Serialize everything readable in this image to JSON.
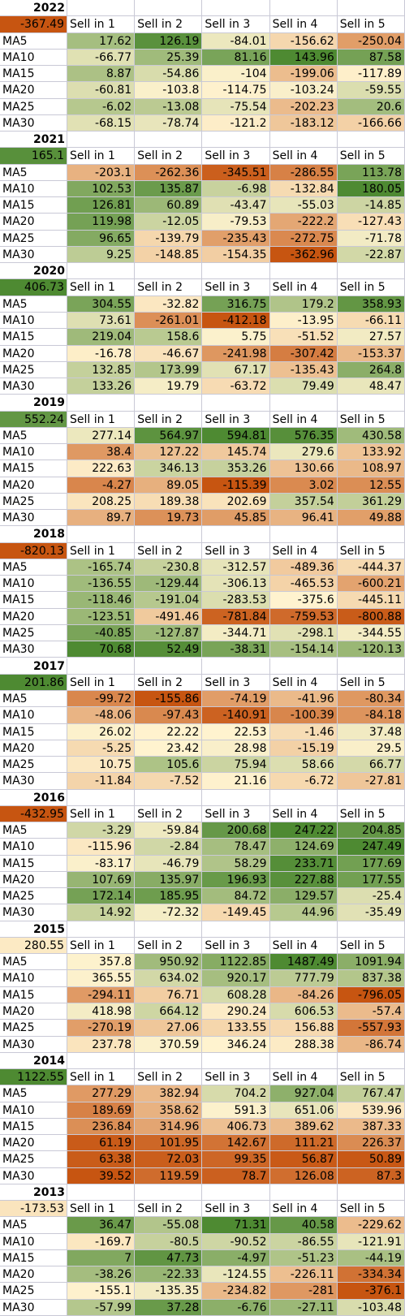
{
  "chart_data": {
    "type": "heatmap",
    "colormap": {
      "negative": "#c75511",
      "neutral": "#fff3cf",
      "positive": "#4e8a32"
    },
    "columns": [
      "Sell in 1",
      "Sell in 2",
      "Sell in 3",
      "Sell in 4",
      "Sell in 5"
    ],
    "rows": [
      "MA5",
      "MA10",
      "MA15",
      "MA20",
      "MA25",
      "MA30"
    ],
    "blocks": [
      {
        "year": "2022",
        "total": -367.49,
        "values": [
          [
            17.62,
            126.19,
            -84.01,
            -156.62,
            -250.04
          ],
          [
            -66.77,
            25.39,
            81.16,
            143.96,
            87.58
          ],
          [
            8.87,
            -54.86,
            -104,
            -199.06,
            -117.89
          ],
          [
            -60.81,
            -103.8,
            -114.75,
            -103.24,
            -59.55
          ],
          [
            -6.02,
            -13.08,
            -75.54,
            -202.23,
            20.6
          ],
          [
            -68.15,
            -78.74,
            -121.2,
            -183.12,
            -166.66
          ]
        ]
      },
      {
        "year": "2021",
        "total": 165.1,
        "values": [
          [
            -203.1,
            -262.36,
            -345.51,
            -286.55,
            113.78
          ],
          [
            102.53,
            135.87,
            -6.98,
            -132.84,
            180.05
          ],
          [
            126.81,
            60.89,
            -43.47,
            -55.03,
            -14.85
          ],
          [
            119.98,
            -12.05,
            -79.53,
            -222.2,
            -127.43
          ],
          [
            96.65,
            -139.79,
            -235.43,
            -272.75,
            -71.78
          ],
          [
            9.25,
            -148.85,
            -154.35,
            -362.96,
            -22.87
          ]
        ]
      },
      {
        "year": "2020",
        "total": 406.73,
        "values": [
          [
            304.55,
            -32.82,
            316.75,
            179.2,
            358.93
          ],
          [
            73.61,
            -261.01,
            -412.18,
            -13.95,
            -66.11
          ],
          [
            219.04,
            158.6,
            5.75,
            -51.52,
            27.57
          ],
          [
            -16.78,
            -46.67,
            -241.98,
            -307.42,
            -153.37
          ],
          [
            132.85,
            173.99,
            67.17,
            -135.43,
            264.8
          ],
          [
            133.26,
            19.79,
            -63.72,
            79.49,
            48.47
          ]
        ]
      },
      {
        "year": "2019",
        "total": 552.24,
        "values": [
          [
            277.14,
            564.97,
            594.81,
            576.35,
            430.58
          ],
          [
            38.4,
            127.22,
            145.74,
            279.6,
            133.92
          ],
          [
            222.63,
            346.13,
            353.26,
            130.66,
            108.97
          ],
          [
            -4.27,
            89.05,
            -115.39,
            3.02,
            12.55
          ],
          [
            208.25,
            189.38,
            202.69,
            357.54,
            361.29
          ],
          [
            89.7,
            19.73,
            45.85,
            96.41,
            49.88
          ]
        ]
      },
      {
        "year": "2018",
        "total": -820.13,
        "values": [
          [
            -165.74,
            -230.8,
            -312.57,
            -489.36,
            -444.37
          ],
          [
            -136.55,
            -129.44,
            -306.13,
            -465.53,
            -600.21
          ],
          [
            -118.46,
            -191.04,
            -283.53,
            -375.6,
            -445.11
          ],
          [
            -123.51,
            -491.46,
            -781.84,
            -759.53,
            -800.88
          ],
          [
            -40.85,
            -127.87,
            -344.71,
            -298.1,
            -344.55
          ],
          [
            70.68,
            52.49,
            -38.31,
            -154.14,
            -120.13
          ]
        ]
      },
      {
        "year": "2017",
        "total": 201.86,
        "values": [
          [
            -99.72,
            -155.86,
            -74.19,
            -41.96,
            -80.34
          ],
          [
            -48.06,
            -97.43,
            -140.91,
            -100.39,
            -84.18
          ],
          [
            26.02,
            22.22,
            22.53,
            -1.46,
            37.48
          ],
          [
            -5.25,
            23.42,
            28.98,
            -15.19,
            29.5
          ],
          [
            10.75,
            105.6,
            75.94,
            58.66,
            66.77
          ],
          [
            -11.84,
            -7.52,
            21.16,
            -6.72,
            -27.81
          ]
        ]
      },
      {
        "year": "2016",
        "total": -432.95,
        "values": [
          [
            -3.29,
            -59.84,
            200.68,
            247.22,
            204.85
          ],
          [
            -115.96,
            -2.84,
            78.47,
            124.69,
            247.49
          ],
          [
            -83.17,
            -46.79,
            58.29,
            233.71,
            177.69
          ],
          [
            107.69,
            135.97,
            196.93,
            227.88,
            177.55
          ],
          [
            172.14,
            185.95,
            84.72,
            129.57,
            -25.4
          ],
          [
            14.92,
            -72.32,
            -149.45,
            44.96,
            -35.49
          ]
        ]
      },
      {
        "year": "2015",
        "total": 280.55,
        "values": [
          [
            357.8,
            950.92,
            1122.85,
            1487.49,
            1091.94
          ],
          [
            365.55,
            634.02,
            920.17,
            777.79,
            837.38
          ],
          [
            -294.11,
            76.71,
            608.28,
            -84.26,
            -796.05
          ],
          [
            418.98,
            664.12,
            290.24,
            606.53,
            -57.4
          ],
          [
            -270.19,
            27.06,
            133.55,
            156.88,
            -557.93
          ],
          [
            237.78,
            370.59,
            346.24,
            288.38,
            -86.74
          ]
        ]
      },
      {
        "year": "2014",
        "total": 1122.55,
        "values": [
          [
            277.29,
            382.94,
            704.2,
            927.04,
            767.47
          ],
          [
            189.69,
            358.62,
            591.3,
            651.06,
            539.96
          ],
          [
            236.84,
            314.96,
            406.73,
            389.62,
            387.33
          ],
          [
            61.19,
            101.95,
            142.67,
            111.21,
            226.37
          ],
          [
            63.38,
            72.03,
            99.35,
            56.87,
            50.89
          ],
          [
            39.52,
            119.59,
            78.7,
            126.08,
            87.3
          ]
        ]
      },
      {
        "year": "2013",
        "total": -173.53,
        "values": [
          [
            36.47,
            -55.08,
            71.31,
            40.58,
            -229.62
          ],
          [
            -169.7,
            -80.5,
            -90.52,
            -86.55,
            -121.91
          ],
          [
            7,
            47.73,
            -4.97,
            -51.23,
            -44.19
          ],
          [
            -38.26,
            -22.33,
            -124.55,
            -226.11,
            -334.34
          ],
          [
            -155.1,
            -135.35,
            -234.82,
            -281,
            -376.1
          ],
          [
            -57.99,
            37.28,
            -6.76,
            -27.11,
            -103.48
          ]
        ]
      }
    ]
  }
}
